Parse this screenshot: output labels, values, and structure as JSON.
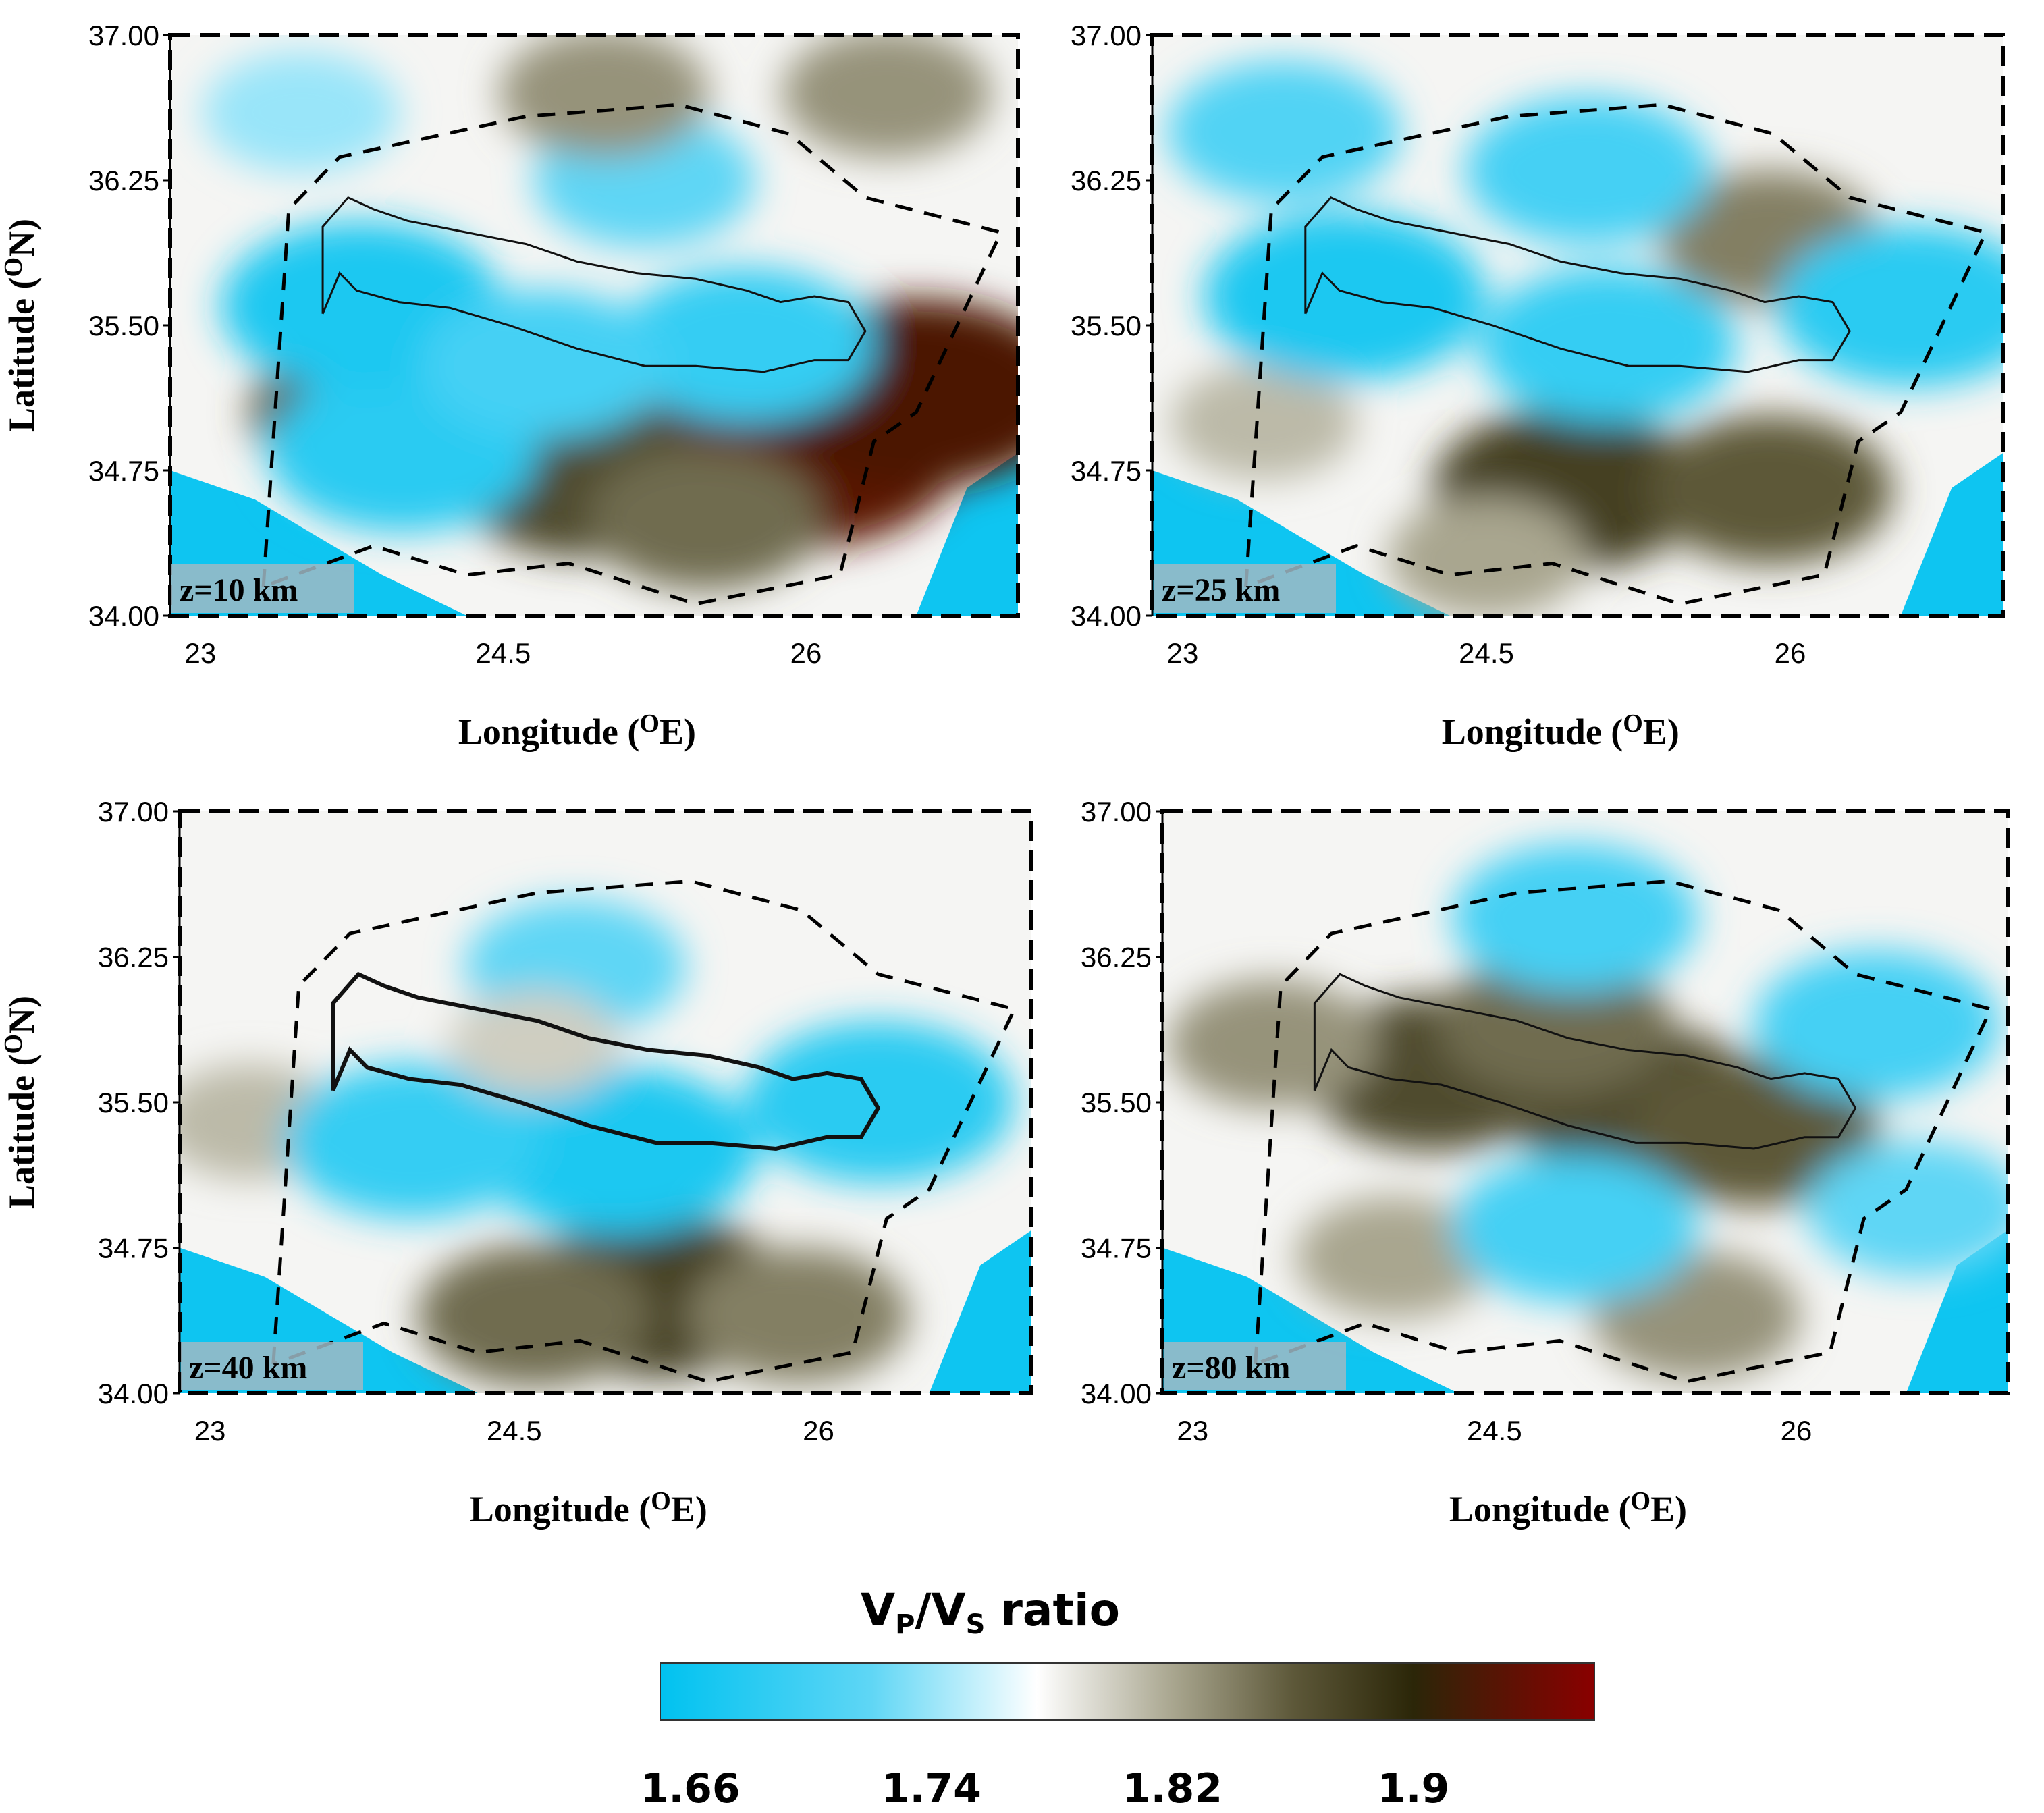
{
  "chart_data": [
    {
      "type": "heatmap",
      "panel_label": "z=10 km",
      "xlabel": "Longitude (",
      "xlabel_sup": "O",
      "xlabel_end": "E)",
      "ylabel": "Latitude (",
      "ylabel_sup": "O",
      "ylabel_end": "N)",
      "xticks": [
        "23",
        "24.5",
        "26"
      ],
      "yticks": [
        "37.00",
        "36.25",
        "35.50",
        "34.75",
        "34.00"
      ],
      "xlim": [
        22.85,
        27.05
      ],
      "ylim": [
        34.0,
        37.0
      ],
      "blobs": [
        {
          "lon": 25.95,
          "lat": 34.85,
          "value": 1.93
        },
        {
          "lon": 26.55,
          "lat": 35.15,
          "value": 1.92
        },
        {
          "lon": 24.9,
          "lat": 34.7,
          "value": 1.87
        },
        {
          "lon": 23.85,
          "lat": 35.05,
          "value": 1.86
        },
        {
          "lon": 25.5,
          "lat": 34.5,
          "value": 1.85
        },
        {
          "lon": 24.0,
          "lat": 34.85,
          "value": 1.68
        },
        {
          "lon": 23.8,
          "lat": 35.6,
          "value": 1.67
        },
        {
          "lon": 25.7,
          "lat": 35.4,
          "value": 1.69
        },
        {
          "lon": 24.7,
          "lat": 35.3,
          "value": 1.7
        },
        {
          "lon": 25.2,
          "lat": 36.25,
          "value": 1.72
        },
        {
          "lon": 23.5,
          "lat": 36.6,
          "value": 1.74
        },
        {
          "lon": 25.0,
          "lat": 36.7,
          "value": 1.83
        },
        {
          "lon": 26.4,
          "lat": 36.7,
          "value": 1.83
        }
      ]
    },
    {
      "type": "heatmap",
      "panel_label": "z=25 km",
      "xlabel": "Longitude (",
      "xlabel_sup": "O",
      "xlabel_end": "E)",
      "ylabel": "",
      "xticks": [
        "23",
        "24.5",
        "26"
      ],
      "yticks": [
        "37.00",
        "36.25",
        "35.50",
        "34.75",
        "34.00"
      ],
      "xlim": [
        22.85,
        27.05
      ],
      "ylim": [
        34.0,
        37.0
      ],
      "blobs": [
        {
          "lon": 24.9,
          "lat": 34.65,
          "value": 1.88
        },
        {
          "lon": 25.9,
          "lat": 34.65,
          "value": 1.86
        },
        {
          "lon": 25.9,
          "lat": 35.95,
          "value": 1.84
        },
        {
          "lon": 24.5,
          "lat": 34.3,
          "value": 1.82
        },
        {
          "lon": 23.4,
          "lat": 35.0,
          "value": 1.81
        },
        {
          "lon": 23.8,
          "lat": 35.65,
          "value": 1.67
        },
        {
          "lon": 25.1,
          "lat": 35.4,
          "value": 1.69
        },
        {
          "lon": 25.0,
          "lat": 36.3,
          "value": 1.7
        },
        {
          "lon": 26.6,
          "lat": 35.6,
          "value": 1.68
        },
        {
          "lon": 23.5,
          "lat": 36.5,
          "value": 1.71
        }
      ]
    },
    {
      "type": "heatmap",
      "panel_label": "z=40 km",
      "xlabel": "Longitude (",
      "xlabel_sup": "O",
      "xlabel_end": "E)",
      "ylabel": "Latitude (",
      "ylabel_sup": "O",
      "ylabel_end": "N)",
      "xticks": [
        "23",
        "24.5",
        "26"
      ],
      "yticks": [
        "37.00",
        "36.25",
        "35.50",
        "34.75",
        "34.00"
      ],
      "xlim": [
        22.85,
        27.05
      ],
      "ylim": [
        34.0,
        37.0
      ],
      "blobs": [
        {
          "lon": 25.2,
          "lat": 34.5,
          "value": 1.88
        },
        {
          "lon": 24.6,
          "lat": 34.4,
          "value": 1.85
        },
        {
          "lon": 25.9,
          "lat": 34.4,
          "value": 1.84
        },
        {
          "lon": 23.2,
          "lat": 35.4,
          "value": 1.81
        },
        {
          "lon": 25.0,
          "lat": 35.25,
          "value": 1.67
        },
        {
          "lon": 26.3,
          "lat": 35.5,
          "value": 1.68
        },
        {
          "lon": 24.0,
          "lat": 35.3,
          "value": 1.69
        },
        {
          "lon": 24.8,
          "lat": 36.2,
          "value": 1.72
        },
        {
          "lon": 24.6,
          "lat": 35.8,
          "value": 1.8
        }
      ]
    },
    {
      "type": "heatmap",
      "panel_label": "z=80 km",
      "xlabel": "Longitude (",
      "xlabel_sup": "O",
      "xlabel_end": "E)",
      "ylabel": "",
      "xticks": [
        "23",
        "24.5",
        "26"
      ],
      "yticks": [
        "37.00",
        "36.25",
        "35.50",
        "34.75",
        "34.00"
      ],
      "xlim": [
        22.85,
        27.05
      ],
      "ylim": [
        34.0,
        37.0
      ],
      "blobs": [
        {
          "lon": 24.2,
          "lat": 35.65,
          "value": 1.87
        },
        {
          "lon": 25.2,
          "lat": 35.5,
          "value": 1.87
        },
        {
          "lon": 25.8,
          "lat": 35.35,
          "value": 1.86
        },
        {
          "lon": 24.8,
          "lat": 35.9,
          "value": 1.85
        },
        {
          "lon": 23.4,
          "lat": 35.8,
          "value": 1.83
        },
        {
          "lon": 25.5,
          "lat": 34.4,
          "value": 1.83
        },
        {
          "lon": 24.0,
          "lat": 34.7,
          "value": 1.82
        },
        {
          "lon": 24.9,
          "lat": 36.45,
          "value": 1.7
        },
        {
          "lon": 26.4,
          "lat": 35.9,
          "value": 1.7
        },
        {
          "lon": 24.9,
          "lat": 34.85,
          "value": 1.7
        },
        {
          "lon": 26.6,
          "lat": 34.95,
          "value": 1.72
        }
      ]
    }
  ],
  "colorbar": {
    "title_main": "V",
    "title_sub1": "P",
    "title_mid": "/V",
    "title_sub2": "S",
    "title_end": " ratio",
    "ticks": [
      {
        "label": "1.66",
        "value": 1.66
      },
      {
        "label": "1.74",
        "value": 1.74
      },
      {
        "label": "1.82",
        "value": 1.82
      },
      {
        "label": "1.9",
        "value": 1.9
      }
    ],
    "range": [
      1.65,
      1.96
    ],
    "stops": [
      {
        "value": 1.65,
        "color": "#00c2f0"
      },
      {
        "value": 1.72,
        "color": "#5fd6f5"
      },
      {
        "value": 1.775,
        "color": "#ffffff"
      },
      {
        "value": 1.82,
        "color": "#a9a68f"
      },
      {
        "value": 1.86,
        "color": "#5d5839"
      },
      {
        "value": 1.9,
        "color": "#2b2608"
      },
      {
        "value": 1.96,
        "color": "#8a0000"
      }
    ]
  }
}
